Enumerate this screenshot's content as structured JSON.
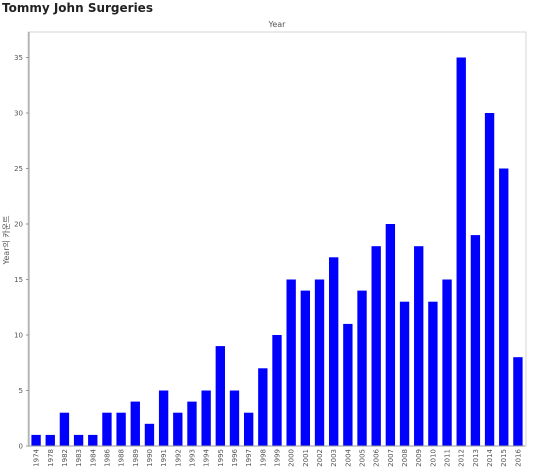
{
  "chart_data": {
    "type": "bar",
    "title": "Tommy John Surgeries",
    "top_header": "Year",
    "ylabel": "Year의 카운트",
    "xlabel": "",
    "ylim": [
      0,
      37
    ],
    "yticks": [
      0,
      5,
      10,
      15,
      20,
      25,
      30,
      35
    ],
    "grid": false,
    "categories": [
      "1974",
      "1978",
      "1982",
      "1983",
      "1984",
      "1986",
      "1988",
      "1989",
      "1990",
      "1991",
      "1992",
      "1993",
      "1994",
      "1995",
      "1996",
      "1997",
      "1998",
      "1999",
      "2000",
      "2001",
      "2002",
      "2003",
      "2004",
      "2005",
      "2006",
      "2007",
      "2008",
      "2009",
      "2010",
      "2011",
      "2012",
      "2013",
      "2014",
      "2015",
      "2016"
    ],
    "values": [
      1,
      1,
      3,
      1,
      1,
      3,
      3,
      4,
      2,
      5,
      3,
      4,
      5,
      9,
      5,
      3,
      7,
      10,
      15,
      14,
      15,
      17,
      11,
      14,
      18,
      20,
      13,
      18,
      13,
      15,
      35,
      19,
      30,
      25,
      8
    ],
    "colors": {
      "bar": "#0000ff",
      "axis": "#999999",
      "frame": "#d4d4d4"
    }
  }
}
